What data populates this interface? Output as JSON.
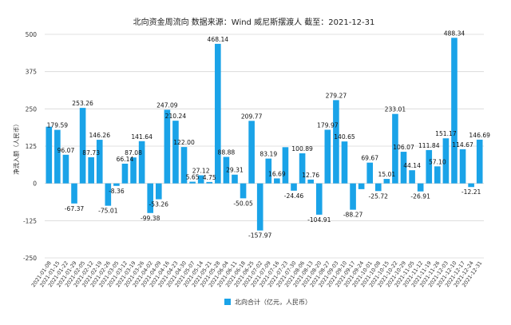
{
  "chart_data": {
    "type": "bar",
    "title": "北向资金周流向  数据来源：Wind 威尼斯摆渡人 截至：2021-12-31",
    "ylabel": "净流入额（人民币）",
    "ylim": [
      -250,
      500
    ],
    "yticks": [
      -250,
      -125,
      0,
      125,
      250,
      375,
      500
    ],
    "grid": true,
    "legend_position": "bottom",
    "bar_color": "#1aa3e8",
    "categories": [
      "2021-01-08",
      "2021-01-15",
      "2021-01-22",
      "2021-01-29",
      "2021-02-05",
      "2021-02-12",
      "2021-02-19",
      "2021-02-26",
      "2021-03-05",
      "2021-03-12",
      "2021-03-19",
      "2021-03-26",
      "2021-04-02",
      "2021-04-09",
      "2021-04-16",
      "2021-04-23",
      "2021-04-30",
      "2021-05-07",
      "2021-05-14",
      "2021-05-21",
      "2021-05-28",
      "2021-06-04",
      "2021-06-11",
      "2021-06-18",
      "2021-06-25",
      "2021-07-02",
      "2021-07-09",
      "2021-07-16",
      "2021-07-23",
      "2021-07-30",
      "2021-08-06",
      "2021-08-13",
      "2021-08-20",
      "2021-08-27",
      "2021-09-03",
      "2021-09-10",
      "2021-09-17",
      "2021-09-24",
      "2021-10-01",
      "2021-10-08",
      "2021-10-15",
      "2021-10-22",
      "2021-10-29",
      "2021-11-05",
      "2021-11-12",
      "2021-11-19",
      "2021-11-26",
      "2021-12-03",
      "2021-12-10",
      "2021-12-17",
      "2021-12-24",
      "2021-12-31"
    ],
    "series": [
      {
        "name": "北向合计（亿元，人民币）",
        "values": [
          190.12,
          179.59,
          96.07,
          -67.37,
          253.26,
          87.73,
          146.26,
          -75.01,
          -8.36,
          66.14,
          87.08,
          141.64,
          -99.38,
          -53.26,
          247.09,
          210.24,
          122.0,
          5.65,
          27.12,
          4.75,
          468.14,
          88.88,
          29.31,
          -50.05,
          209.77,
          -157.97,
          83.19,
          16.69,
          121.45,
          -24.46,
          100.89,
          12.76,
          -104.91,
          179.97,
          279.27,
          140.65,
          -88.27,
          -19.3,
          69.67,
          -25.72,
          15.01,
          233.01,
          106.07,
          44.14,
          -26.91,
          111.84,
          57.1,
          151.17,
          488.34,
          114.67,
          -12.21,
          146.69
        ]
      }
    ],
    "labels": [
      "",
      "179.59",
      "96.07",
      "-67.37",
      "253.26",
      "87.73",
      "146.26",
      "-75.01",
      "-8.36",
      "66.14",
      "87.08",
      "141.64",
      "-99.38",
      "-53.26",
      "247.09",
      "210.24",
      "122.00",
      "5.65",
      "27.12",
      "4.75",
      "468.14",
      "88.88",
      "29.31",
      "-50.05",
      "209.77",
      "-157.97",
      "83.19",
      "16.69",
      "",
      "-24.46",
      "100.89",
      "12.76",
      "-104.91",
      "179.97",
      "279.27",
      "140.65",
      "-88.27",
      "",
      "69.67",
      "-25.72",
      "15.01",
      "233.01",
      "106.07",
      "44.14",
      "-26.91",
      "111.84",
      "57.10",
      "151.17",
      "488.34",
      "114.67",
      "-12.21",
      "146.69"
    ]
  }
}
